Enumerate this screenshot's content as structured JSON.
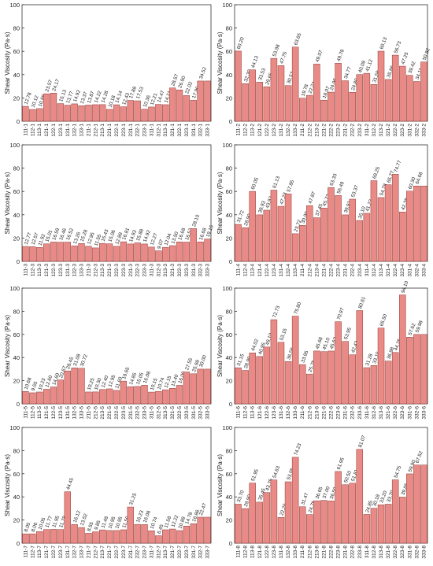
{
  "colors": {
    "bar_fill": "#e98a86",
    "bar_stroke": "#8a3a36",
    "axis": "#333333",
    "label_text": "#222222"
  },
  "chart_data": [
    {
      "type": "bar",
      "ylabel": "Shear Viscosity (Pa·s)",
      "ylim": [
        0,
        100
      ],
      "yticks": [
        0,
        20,
        40,
        60,
        80,
        100
      ],
      "grid": false,
      "categories": [
        "111-1",
        "112-1",
        "113-1",
        "121-1",
        "122-1",
        "123-1",
        "131-1",
        "132-1",
        "133-1",
        "211-1",
        "212-1",
        "213-1",
        "221-1",
        "222-1",
        "223-1",
        "231-1",
        "232-1",
        "233-1",
        "311-1",
        "312-1",
        "313-1",
        "321-1",
        "322-1",
        "323-1",
        "331-1",
        "332-1",
        "333-1"
      ],
      "values": [
        12.78,
        10.12,
        10.88,
        23.57,
        24.17,
        15.13,
        13.77,
        14.92,
        13.37,
        13.87,
        14.22,
        14.28,
        10.18,
        14.14,
        12.43,
        17.88,
        17.53,
        10.36,
        12.21,
        14.47,
        14.21,
        28.57,
        26.9,
        22.02,
        17.99,
        34.52,
        34.52
      ],
      "labels": [
        "12.78",
        "10.12",
        "10.88",
        "23.57",
        "24.17",
        "15.13",
        "13.77",
        "14.92",
        "13.37",
        "13.87",
        "14.22",
        "14.28",
        "10.18",
        "14.14",
        "12.43",
        "17.88",
        "17.53",
        "10.36",
        "12.21",
        "14.47",
        "14.21",
        "28.57",
        "26.90",
        "22.02",
        "17.99",
        "34.52",
        ""
      ]
    },
    {
      "type": "bar",
      "ylabel": "Shear Viscosity (Pa·s)",
      "ylim": [
        0,
        100
      ],
      "yticks": [
        0,
        20,
        40,
        60,
        80,
        100
      ],
      "grid": false,
      "categories": [
        "111-2",
        "112-2",
        "113-2",
        "121-2",
        "122-2",
        "123-2",
        "131-2",
        "132-2",
        "133-2",
        "211-2",
        "212-2",
        "213-2",
        "221-2",
        "222-2",
        "223-2",
        "231-2",
        "232-2",
        "233-2",
        "311-2",
        "312-2",
        "313-2",
        "321-2",
        "322-2",
        "323-2",
        "331-2",
        "332-2",
        "333-2"
      ],
      "values": [
        60.2,
        32.3,
        44.13,
        33.53,
        29.65,
        53.98,
        47.75,
        30.57,
        63.65,
        19.78,
        22.24,
        49.07,
        18.07,
        24.96,
        49.78,
        34.77,
        24.8,
        40.08,
        41.12,
        31.58,
        60.13,
        35.86,
        56.73,
        47.25,
        39.42,
        34.11,
        50.82
      ],
      "labels": [
        "60.20",
        "32.30",
        "44.13",
        "33.53",
        "29.65",
        "53.98",
        "47.75",
        "30.57",
        "63.65",
        "19.78",
        "22.24",
        "49.07",
        "18.07",
        "24.96",
        "49.78",
        "34.77",
        "24.80",
        "40.08",
        "41.12",
        "31.58",
        "60.13",
        "35.86",
        "56.73",
        "47.25",
        "39.42",
        "34.11",
        "50.82"
      ]
    },
    {
      "type": "bar",
      "ylabel": "Shear Viscosity (Pa·s)",
      "ylim": [
        0,
        100
      ],
      "yticks": [
        0,
        20,
        40,
        60,
        80,
        100
      ],
      "grid": false,
      "categories": [
        "111-3",
        "112-3",
        "113-3",
        "121-3",
        "122-3",
        "123-3",
        "131-3",
        "132-3",
        "133-3",
        "211-3",
        "212-3",
        "213-3",
        "221-3",
        "222-3",
        "223-3",
        "231-3",
        "232-3",
        "233-3",
        "311-3",
        "312-3",
        "313-3",
        "321-3",
        "322-3",
        "323-3",
        "331-3",
        "332-3",
        "333-3"
      ],
      "values": [
        12.77,
        12.57,
        11.92,
        15.01,
        16.59,
        16.46,
        16.52,
        13.26,
        15.28,
        12.95,
        11.55,
        15.43,
        15.06,
        12.89,
        16.81,
        14.93,
        15.88,
        14.92,
        12.27,
        9.07,
        12.04,
        13.5,
        16.68,
        16.52,
        28.1,
        16.68,
        19.15
      ],
      "labels": [
        "12.77",
        "12.57",
        "11.92",
        "15.01",
        "16.59",
        "16.46",
        "16.52",
        "13.26",
        "15.28",
        "12.95",
        "11.55",
        "15.43",
        "15.06",
        "12.89",
        "16.81",
        "14.93",
        "15.88",
        "14.92",
        "12.27",
        "9.07",
        "12.04",
        "13.50",
        "16.68",
        "16.52",
        "28.10",
        "16.68",
        "19.15"
      ]
    },
    {
      "type": "bar",
      "ylabel": "Shear Viscosity (Pa·s)",
      "ylim": [
        0,
        100
      ],
      "yticks": [
        0,
        20,
        40,
        60,
        80,
        100
      ],
      "grid": false,
      "categories": [
        "111-4",
        "112-4",
        "113-4",
        "121-4",
        "122-4",
        "123-4",
        "131-4",
        "132-4",
        "133-4",
        "211-4",
        "212-4",
        "213-4",
        "221-4",
        "222-4",
        "223-4",
        "231-4",
        "232-4",
        "233-4",
        "311-4",
        "312-4",
        "313-4",
        "321-4",
        "322-4",
        "323-4",
        "331-4",
        "332-4",
        "333-4"
      ],
      "values": [
        31.72,
        28.9,
        60.05,
        39.93,
        43.92,
        61.13,
        47.23,
        57.85,
        23.72,
        30.9,
        47.87,
        37.45,
        45.72,
        63.33,
        56.49,
        39.91,
        53.37,
        35.1,
        41.23,
        69.25,
        54.78,
        65.77,
        74.77,
        42.38,
        60.3,
        64.68,
        64.68
      ],
      "labels": [
        "31.72",
        "28.90",
        "60.05",
        "39.93",
        "43.92",
        "61.13",
        "47.23",
        "57.85",
        "23.72",
        "30.90",
        "47.87",
        "37.45",
        "45.72",
        "63.33",
        "56.49",
        "39.91",
        "53.37",
        "35.10",
        "41.23",
        "69.25",
        "54.78",
        "65.77",
        "74.77",
        "42.38",
        "60.30",
        "64.68",
        ""
      ]
    },
    {
      "type": "bar",
      "ylabel": "Shear Viscosity (Pa·s)",
      "ylim": [
        0,
        100
      ],
      "yticks": [
        0,
        20,
        40,
        60,
        80,
        100
      ],
      "grid": false,
      "categories": [
        "111-5",
        "112-5",
        "113-5",
        "121-5",
        "122-5",
        "123-5",
        "131-5",
        "132-5",
        "133-5",
        "211-5",
        "212-5",
        "213-5",
        "221-5",
        "222-5",
        "223-5",
        "231-5",
        "232-5",
        "233-5",
        "311-5",
        "312-5",
        "313-5",
        "321-5",
        "322-5",
        "323-5",
        "331-5",
        "332-5",
        "333-5"
      ],
      "values": [
        10.68,
        9.55,
        10.23,
        12.6,
        14.6,
        20.67,
        28.45,
        31.08,
        30.72,
        10.25,
        10.3,
        12.4,
        12.95,
        11.6,
        19.65,
        14.85,
        15.05,
        16.08,
        10.15,
        10.74,
        12.15,
        13.4,
        16.0,
        27.55,
        25.98,
        30.0,
        30.0
      ],
      "labels": [
        "10.68",
        "9.55",
        "10.23",
        "12.60",
        "14.60",
        "20.67",
        "28.45",
        "31.08",
        "30.72",
        "10.25",
        "10.30",
        "12.40",
        "12.95",
        "11.60",
        "19.65",
        "14.85",
        "15.05",
        "16.08",
        "10.15",
        "10.74",
        "12.15",
        "13.40",
        "16.00",
        "27.55",
        "25.98",
        "30.00",
        ""
      ]
    },
    {
      "type": "bar",
      "ylabel": "Shear Viscosity (Pa·s)",
      "ylim": [
        0,
        100
      ],
      "yticks": [
        0,
        20,
        40,
        60,
        80,
        100
      ],
      "grid": false,
      "categories": [
        "111-6",
        "112-6",
        "113-6",
        "121-6",
        "122-6",
        "123-6",
        "131-6",
        "132-6",
        "133-6",
        "211-6",
        "212-6",
        "213-6",
        "221-6",
        "222-6",
        "223-6",
        "231-6",
        "232-6",
        "233-6",
        "311-6",
        "312-6",
        "313-6",
        "321-6",
        "322-6",
        "323-6",
        "331-6",
        "332-6",
        "333-6"
      ],
      "values": [
        31.15,
        28.9,
        44.02,
        40.95,
        49.1,
        72.73,
        53.15,
        36.58,
        75.8,
        33.95,
        25.75,
        45.68,
        45.1,
        45.63,
        70.97,
        53.95,
        42.43,
        80.61,
        31.28,
        33.15,
        65.5,
        36.98,
        44.35,
        94.1,
        57.62,
        59.98,
        59.98
      ],
      "labels": [
        "31.15",
        "28.90",
        "44.02",
        "40.95",
        "49.10",
        "72.73",
        "53.15",
        "36.58",
        "75.80",
        "33.95",
        "25.75",
        "45.68",
        "45.10",
        "45.63",
        "70.97",
        "53.95",
        "42.43",
        "80.61",
        "31.28",
        "33.15",
        "65.50",
        "36.98",
        "44.35",
        "94.10",
        "57.62",
        "59.98",
        ""
      ]
    },
    {
      "type": "bar",
      "ylabel": "Shear Viscosity (Pa·s)",
      "ylim": [
        0,
        100
      ],
      "yticks": [
        0,
        20,
        40,
        60,
        80,
        100
      ],
      "grid": false,
      "categories": [
        "111-7",
        "112-7",
        "113-7",
        "121-7",
        "122-7",
        "123-7",
        "131-7",
        "132-7",
        "133-7",
        "211-7",
        "212-7",
        "213-7",
        "221-7",
        "222-7",
        "223-7",
        "231-7",
        "232-7",
        "233-7",
        "311-7",
        "312-7",
        "313-7",
        "321-7",
        "322-7",
        "323-7",
        "331-7",
        "332-7",
        "333-7"
      ],
      "values": [
        8.05,
        8.06,
        10.05,
        11.77,
        11.95,
        11.78,
        44.45,
        16.12,
        13.52,
        8.55,
        9.85,
        11.48,
        10.95,
        10.95,
        11.59,
        31.25,
        16.23,
        16.08,
        10.74,
        6.45,
        11.58,
        12.22,
        10.89,
        14.78,
        16.86,
        22.47,
        22.47
      ],
      "labels": [
        "8.05",
        "8.06",
        "10.05",
        "11.77",
        "11.95",
        "11.78",
        "44.45",
        "16.12",
        "13.52",
        "8.55",
        "9.85",
        "11.48",
        "10.95",
        "10.95",
        "11.59",
        "31.25",
        "16.23",
        "16.08",
        "10.74",
        "6.45",
        "11.58",
        "12.22",
        "10.89",
        "14.78",
        "16.86",
        "22.47",
        ""
      ]
    },
    {
      "type": "bar",
      "ylabel": "Shear Viscosity (Pa·s)",
      "ylim": [
        0,
        100
      ],
      "yticks": [
        0,
        20,
        40,
        60,
        80,
        100
      ],
      "grid": false,
      "categories": [
        "111-8",
        "112-8",
        "113-8",
        "121-8",
        "122-8",
        "123-8",
        "131-8",
        "132-8",
        "133-8",
        "211-8",
        "212-8",
        "213-8",
        "221-8",
        "222-8",
        "223-8",
        "231-8",
        "232-8",
        "233-8",
        "311-8",
        "312-8",
        "313-8",
        "321-8",
        "322-8",
        "323-8",
        "331-8",
        "332-8",
        "333-8"
      ],
      "values": [
        33.7,
        29.9,
        51.95,
        35.45,
        43.75,
        54.63,
        22.25,
        53.05,
        74.23,
        31.47,
        24.75,
        36.65,
        37.0,
        36.5,
        61.95,
        50.5,
        51.81,
        81.07,
        24.85,
        30.18,
        33.2,
        33.7,
        54.75,
        39.85,
        59.9,
        67.52,
        67.52
      ],
      "labels": [
        "33.70",
        "29.90",
        "51.95",
        "35.45",
        "43.75",
        "54.63",
        "22.25",
        "53.05",
        "74.23",
        "31.47",
        "24.75",
        "36.65",
        "37.00",
        "36.50",
        "61.95",
        "50.50",
        "51.81",
        "81.07",
        "24.85",
        "30.18",
        "33.20",
        "33.70",
        "54.75",
        "39.85",
        "59.90",
        "67.52",
        ""
      ]
    }
  ]
}
